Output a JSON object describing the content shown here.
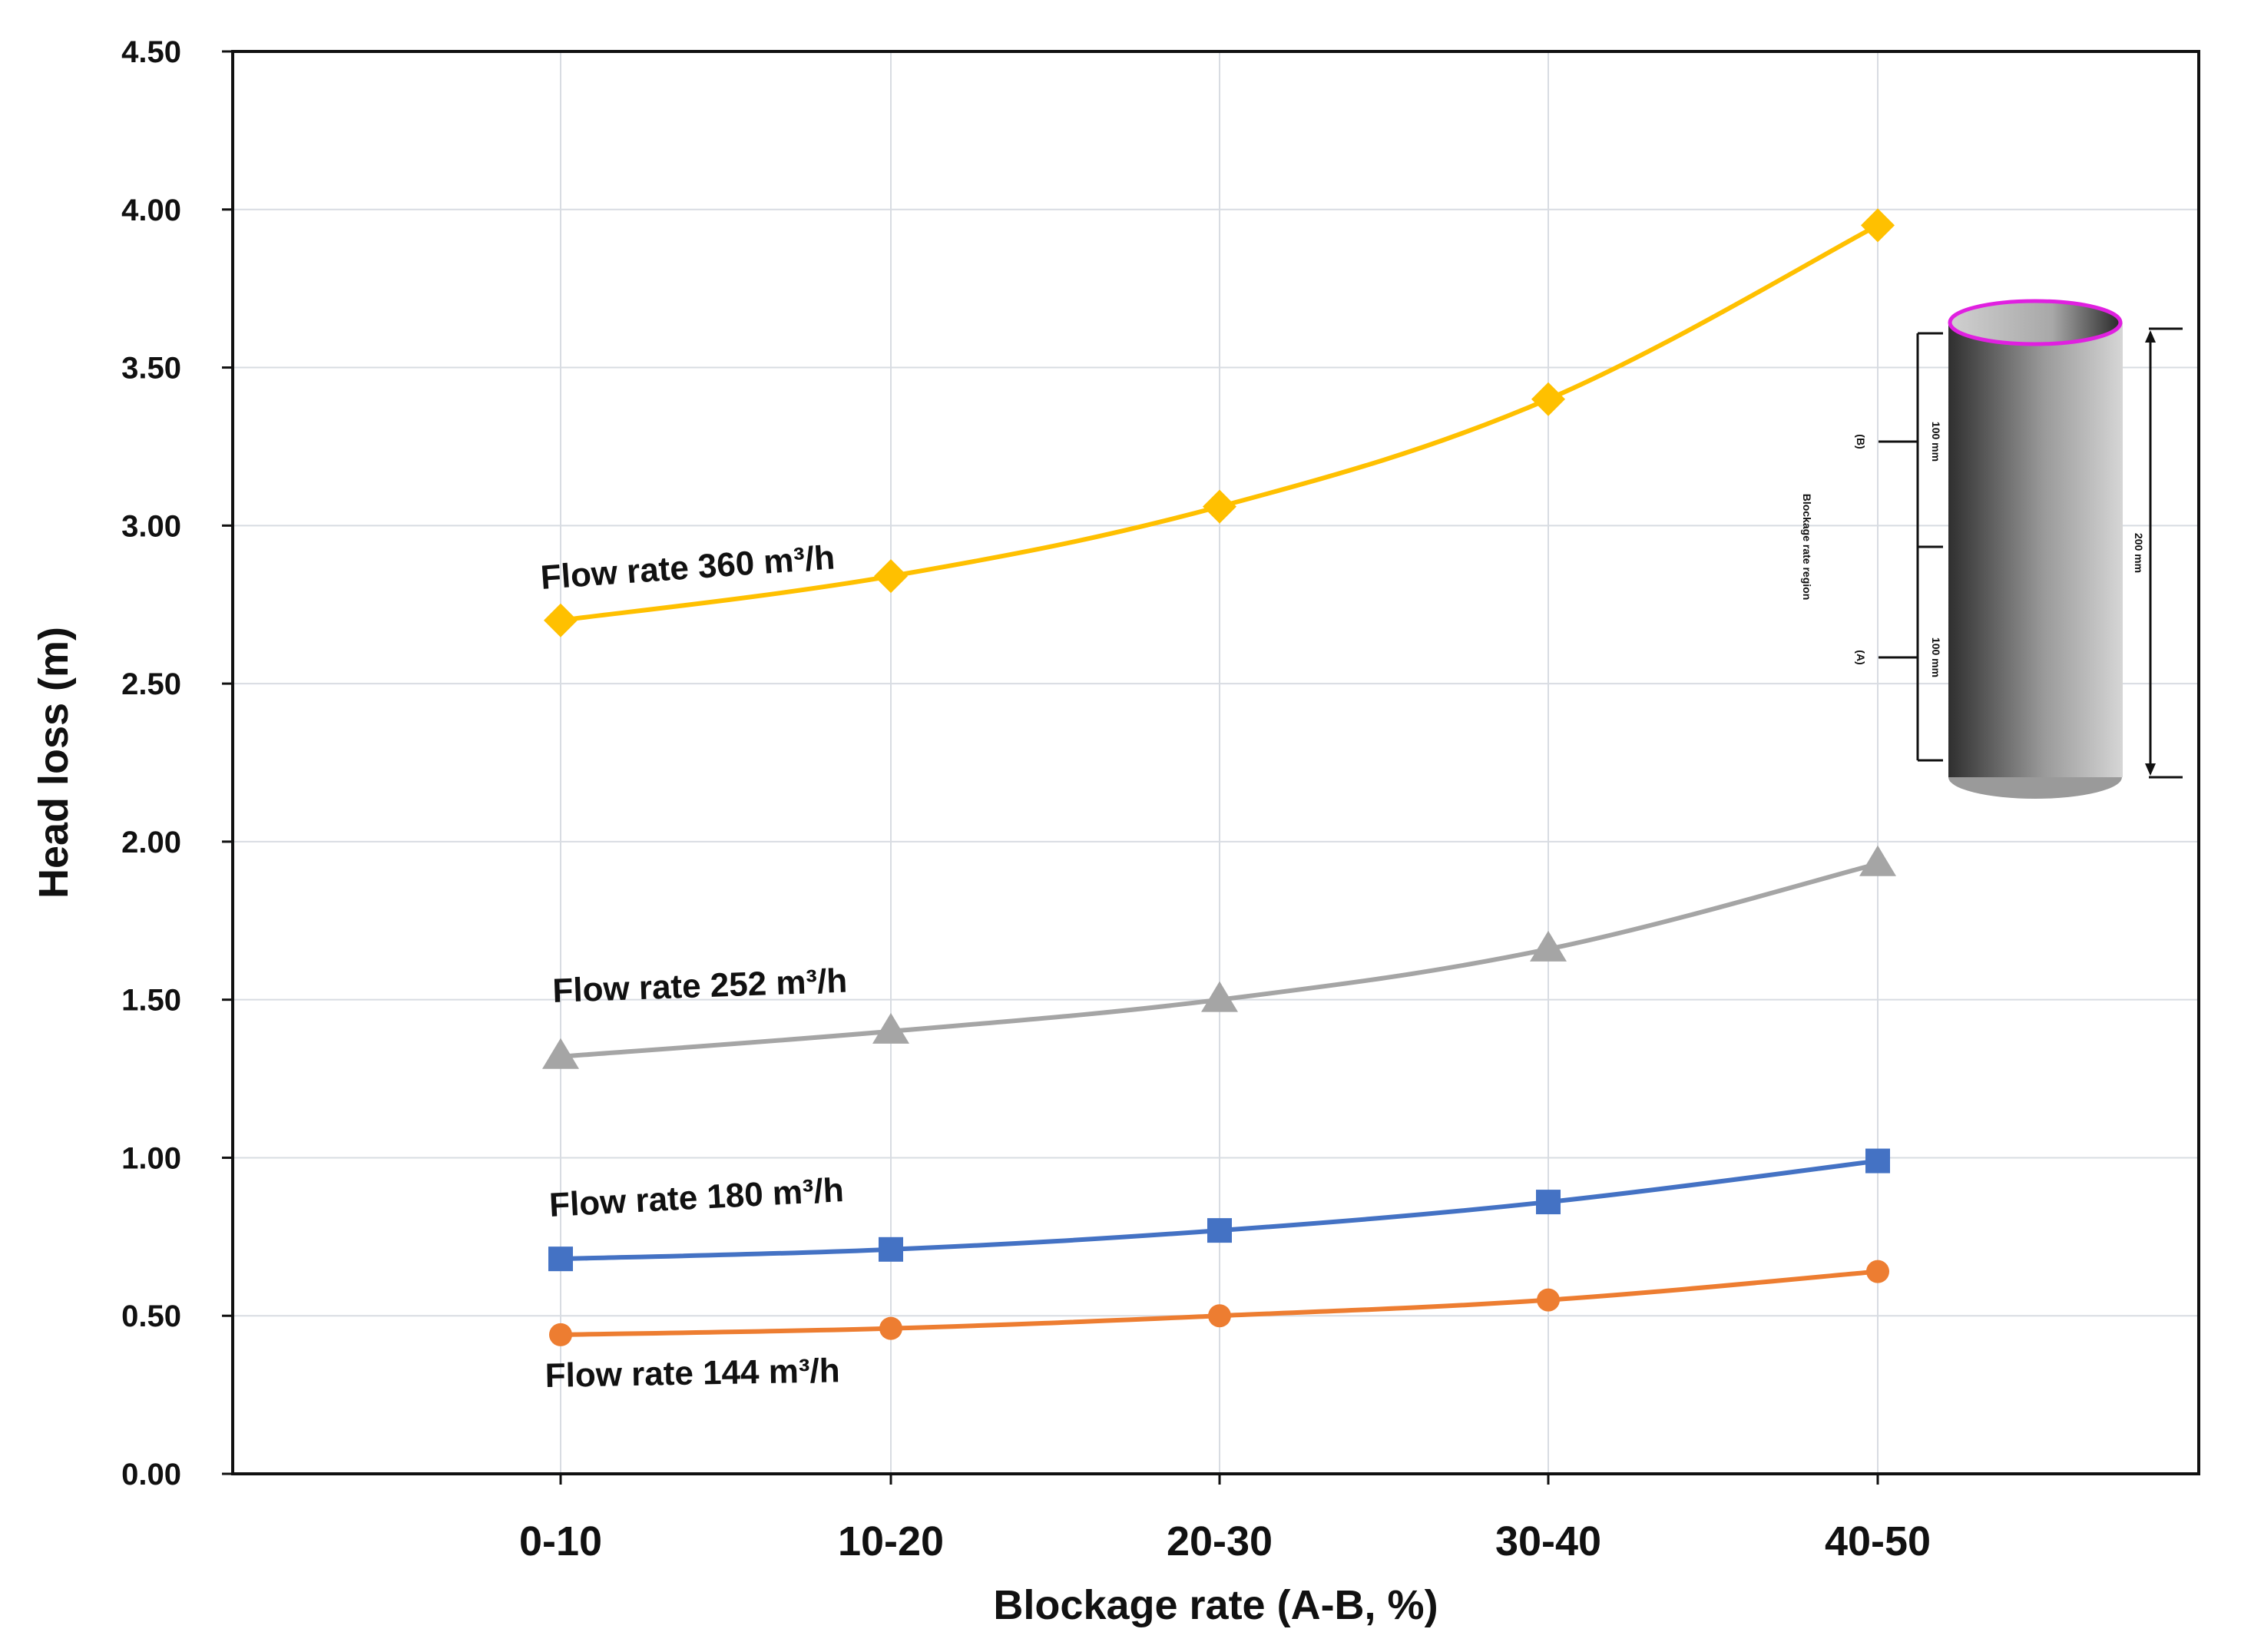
{
  "chart_data": {
    "type": "line",
    "title": "",
    "xlabel": "Blockage rate (A-B, %)",
    "ylabel": "Head loss (m)",
    "categories": [
      "0-10",
      "10-20",
      "20-30",
      "30-40",
      "40-50"
    ],
    "ylim": [
      0,
      4.5
    ],
    "yticks": [
      "0.00",
      "0.50",
      "1.00",
      "1.50",
      "2.00",
      "2.50",
      "3.00",
      "3.50",
      "4.00",
      "4.50"
    ],
    "grid": true,
    "series": [
      {
        "name": "Flow rate 360 m³/h",
        "marker": "diamond",
        "color": "#ffc000",
        "values": [
          2.7,
          2.84,
          3.06,
          3.4,
          3.95
        ]
      },
      {
        "name": "Flow rate 252 m³/h",
        "marker": "triangle",
        "color": "#a5a5a5",
        "values": [
          1.32,
          1.4,
          1.5,
          1.66,
          1.93
        ]
      },
      {
        "name": "Flow rate 180 m³/h",
        "marker": "square",
        "color": "#4472c4",
        "values": [
          0.68,
          0.71,
          0.77,
          0.86,
          0.99
        ]
      },
      {
        "name": "Flow rate 144 m³/h",
        "marker": "circle",
        "color": "#ed7d31",
        "values": [
          0.44,
          0.46,
          0.5,
          0.55,
          0.64
        ]
      }
    ]
  },
  "inset": {
    "region_label": "Blockage rate region",
    "marker_b": "(B)",
    "marker_a": "(A)",
    "upper_length": "100 mm",
    "lower_length": "100 mm",
    "total_length": "200 mm",
    "rim_color": "#e020e0"
  }
}
